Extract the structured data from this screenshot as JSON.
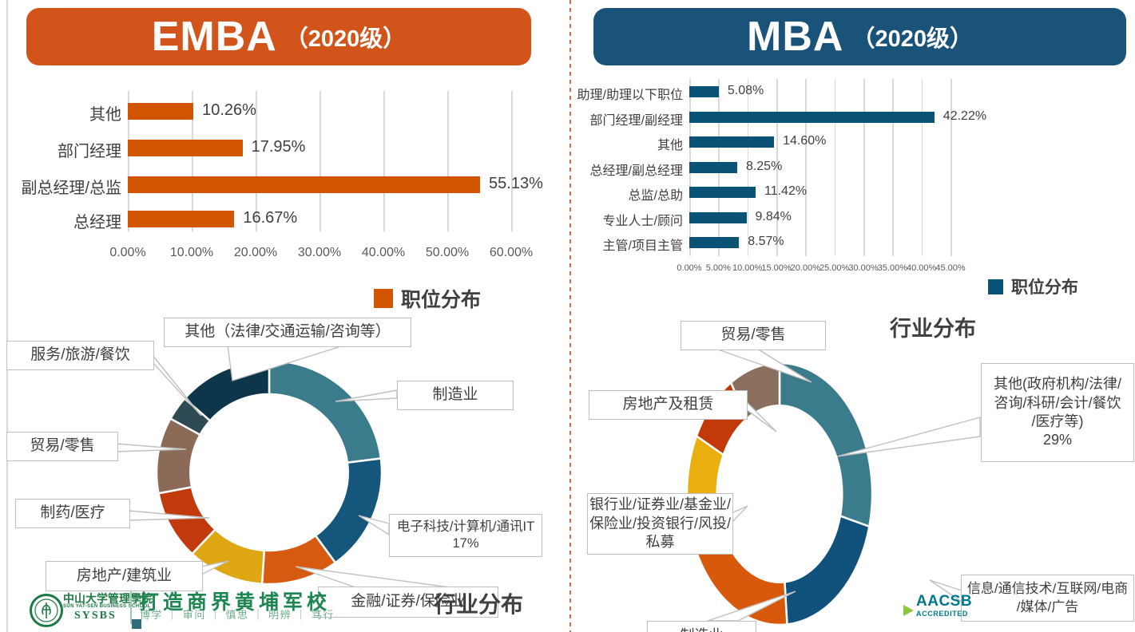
{
  "left_panel": {
    "header": {
      "title": "EMBA",
      "cohort": "（2020级）"
    },
    "logo": {
      "school_cn": "中山大学管理學院",
      "school_en": "SUN YAT-SEN BUSINESS SCHOOL",
      "abbr": "SYSBS",
      "slogan": "打造商界黄埔军校",
      "motto": "博学 ｜ 审问 ｜ 慎思 ｜ 明辨 ｜ 笃行"
    },
    "industry_callouts": [
      {
        "lines": [
          "其他（法律/交通运输/咨询等）"
        ]
      },
      {
        "lines": [
          "服务/旅游/餐饮"
        ]
      },
      {
        "lines": [
          "贸易/零售"
        ]
      },
      {
        "lines": [
          "制药/医疗"
        ]
      },
      {
        "lines": [
          "房地产/建筑业"
        ]
      },
      {
        "lines": [
          "金融/证券/保险业"
        ]
      },
      {
        "lines": [
          "制造业"
        ]
      },
      {
        "lines": [
          "电子科技/计算机/通讯IT",
          "17%"
        ]
      }
    ]
  },
  "right_panel": {
    "header": {
      "title": "MBA",
      "cohort": "（2020级）"
    },
    "aacsb": {
      "name": "AACSB",
      "sub": "ACCREDITED"
    },
    "industry_callouts": [
      {
        "lines": [
          "贸易/零售"
        ]
      },
      {
        "lines": [
          "房地产及租赁"
        ]
      },
      {
        "lines": [
          "银行业/证券业/基金业/",
          "保险业/投资银行/风投/",
          "私募"
        ]
      },
      {
        "lines": [
          "制造业"
        ]
      },
      {
        "lines": [
          "信息/通信技术/互联网/电商",
          "/媒体/广告"
        ]
      },
      {
        "lines": [
          "其他(政府机构/法律/",
          "咨询/科研/会计/餐饮",
          "/医疗等)",
          "29%"
        ]
      }
    ]
  },
  "chart_data": [
    {
      "id": "emba_positions",
      "type": "bar",
      "orientation": "horizontal",
      "legend": "职位分布",
      "legend_position": "bottom",
      "categories": [
        "其他",
        "部门经理",
        "副总经理/总监",
        "总经理"
      ],
      "values": [
        10.26,
        17.95,
        55.13,
        16.67
      ],
      "value_labels": [
        "10.26%",
        "17.95%",
        "55.13%",
        "16.67%"
      ],
      "xlim": [
        0,
        60
      ],
      "x_ticks": [
        "0.00%",
        "10.00%",
        "20.00%",
        "30.00%",
        "40.00%",
        "50.00%",
        "60.00%"
      ],
      "bar_color": "#d25503",
      "grid": true
    },
    {
      "id": "mba_positions",
      "type": "bar",
      "orientation": "horizontal",
      "legend": "职位分布",
      "legend_position": "bottom",
      "categories": [
        "助理/助理以下职位",
        "部门经理/副经理",
        "其他",
        "总经理/副总经理",
        "总监/总助",
        "专业人士/顾问",
        "主管/项目主管"
      ],
      "values": [
        5.08,
        42.22,
        14.6,
        8.25,
        11.42,
        9.84,
        8.57
      ],
      "value_labels": [
        "5.08%",
        "42.22%",
        "14.60%",
        "8.25%",
        "11.42%",
        "9.84%",
        "8.57%"
      ],
      "xlim": [
        0,
        45
      ],
      "x_ticks": [
        "0.00%",
        "5.00%",
        "10.00%",
        "15.00%",
        "20.00%",
        "25.00%",
        "30.00%",
        "35.00%",
        "40.00%",
        "45.00%"
      ],
      "bar_color": "#0a5377",
      "grid": true
    },
    {
      "id": "emba_industries",
      "type": "pie",
      "subtype": "donut",
      "title": "行业分布",
      "start_angle_deg": 0,
      "direction": "clockwise",
      "segments": [
        {
          "label": "制造业",
          "pct": 23.0,
          "color": "#3a7c8c"
        },
        {
          "label": "电子科技/计算机/通讯IT",
          "pct": 17.0,
          "pct_label": "17%",
          "color": "#15567d"
        },
        {
          "label": "金融/证券/保险业",
          "pct": 11.0,
          "color": "#d65a10"
        },
        {
          "label": "房地产/建筑业",
          "pct": 11.0,
          "color": "#dfa713"
        },
        {
          "label": "制药/医疗",
          "pct": 10.0,
          "color": "#c23a0c"
        },
        {
          "label": "贸易/零售",
          "pct": 11.0,
          "color": "#8b6b58"
        },
        {
          "label": "服务/旅游/餐饮",
          "pct": 3.5,
          "color": "#2e4b55"
        },
        {
          "label": "其他（法律/交通运输/咨询等）",
          "pct": 13.5,
          "color": "#0e364b"
        }
      ]
    },
    {
      "id": "mba_industries",
      "type": "pie",
      "subtype": "donut",
      "title": "行业分布",
      "start_angle_deg": 0,
      "direction": "clockwise",
      "segments": [
        {
          "label": "其他(政府机构/法律/咨询/科研/会计/餐饮/医疗等)",
          "pct": 29.0,
          "pct_label": "29%",
          "color": "#3a7c8c"
        },
        {
          "label": "信息/通信技术/互联网/电商/媒体/广告",
          "pct": 19.7,
          "color": "#10527b"
        },
        {
          "label": "制造业",
          "pct": 19.7,
          "color": "#d8590c"
        },
        {
          "label": "银行业/证券业/基金业/保险业/投资银行/风投/私募",
          "pct": 13.9,
          "color": "#e8af0f"
        },
        {
          "label": "房地产及租赁",
          "pct": 8.9,
          "color": "#c33a0a"
        },
        {
          "label": "贸易/零售",
          "pct": 8.8,
          "color": "#8b6f5e"
        }
      ]
    }
  ]
}
